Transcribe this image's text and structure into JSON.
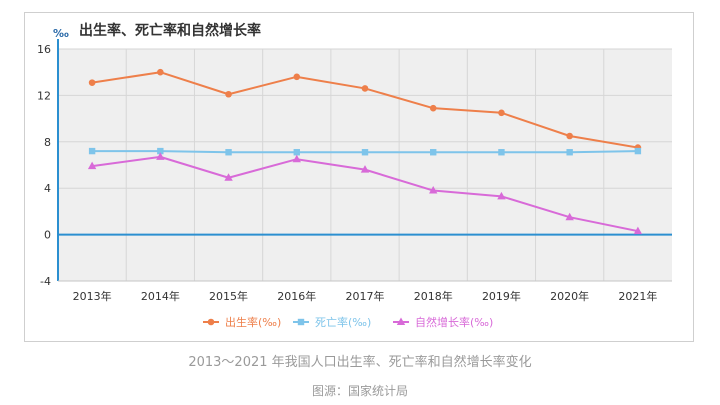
{
  "chart_data": {
    "type": "line",
    "title": "出生率、死亡率和自然增长率",
    "ylabel": "‰",
    "xlabel": "",
    "categories": [
      "2013年",
      "2014年",
      "2015年",
      "2016年",
      "2017年",
      "2018年",
      "2019年",
      "2020年",
      "2021年"
    ],
    "ylim": [
      -4,
      16
    ],
    "yticks": [
      -4,
      0,
      4,
      8,
      12,
      16
    ],
    "grid": true,
    "legend_position": "bottom",
    "series": [
      {
        "name": "出生率(‰)",
        "color": "#ee7f4a",
        "marker": "circle",
        "values": [
          13.1,
          14.0,
          12.1,
          13.6,
          12.6,
          10.9,
          10.5,
          8.5,
          7.5
        ]
      },
      {
        "name": "死亡率(‰)",
        "color": "#7ec4ea",
        "marker": "square",
        "values": [
          7.2,
          7.2,
          7.1,
          7.1,
          7.1,
          7.1,
          7.1,
          7.1,
          7.2
        ]
      },
      {
        "name": "自然增长率(‰)",
        "color": "#d86ad8",
        "marker": "triangle",
        "values": [
          5.9,
          6.7,
          4.9,
          6.5,
          5.6,
          3.8,
          3.3,
          1.5,
          0.3
        ]
      }
    ]
  },
  "caption": "2013～2021 年我国人口出生率、死亡率和自然增长率变化",
  "source": "图源：国家统计局"
}
